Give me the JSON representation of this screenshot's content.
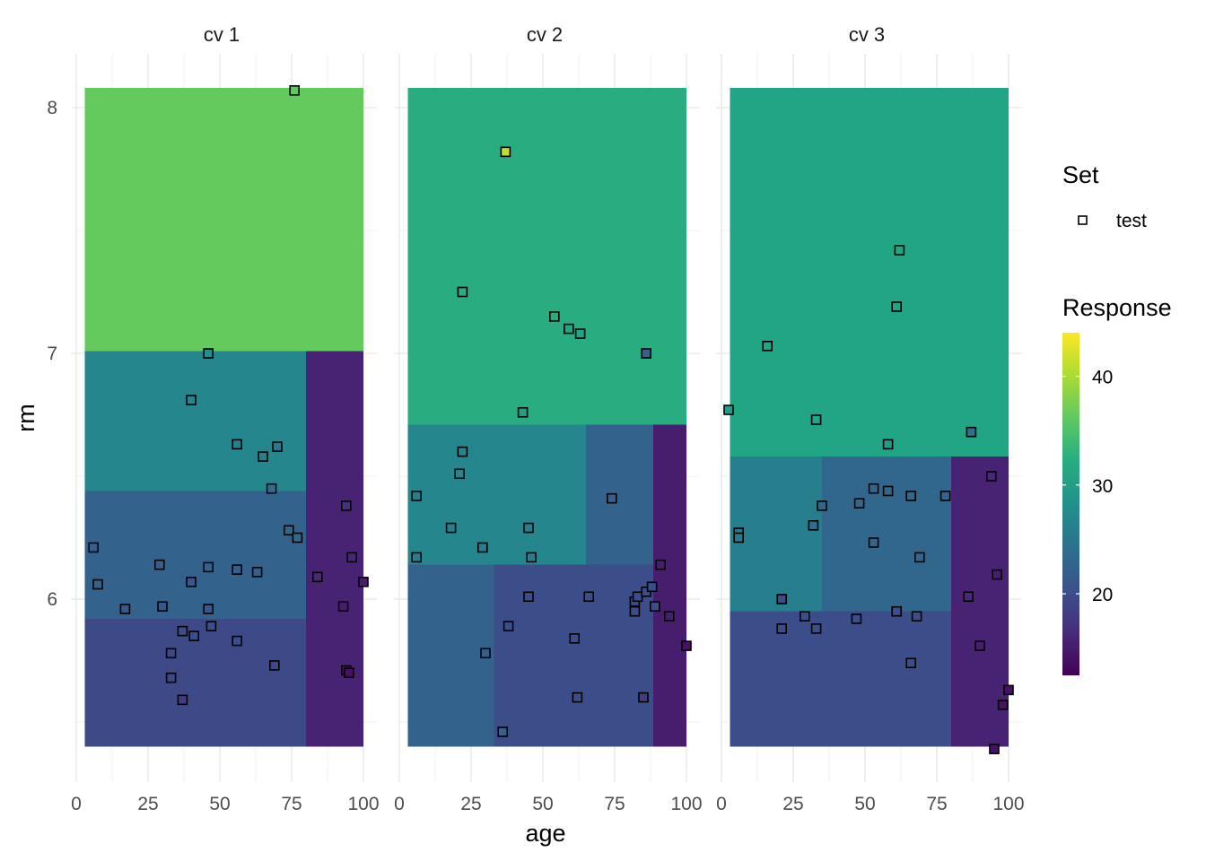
{
  "chart_data": {
    "type": "heatmap",
    "subtype": "faceted partition plot with test points",
    "x_label": "age",
    "y_label": "rm",
    "xlim": [
      0,
      100
    ],
    "ylim": [
      5.35,
      8.25
    ],
    "x_ticks": [
      "0",
      "25",
      "50",
      "75",
      "100"
    ],
    "y_ticks": [
      "6",
      "7",
      "8"
    ],
    "x_tick_values": [
      0,
      25,
      50,
      75,
      100
    ],
    "y_tick_values": [
      6,
      7,
      8
    ],
    "grid": true,
    "legend_position": "right",
    "legend": {
      "set_title": "Set",
      "set_entries": [
        "test"
      ],
      "response_title": "Response",
      "response_ticks": [
        "20",
        "30",
        "40"
      ],
      "response_tick_values": [
        20,
        30,
        40
      ],
      "response_range": [
        12.5,
        44
      ]
    },
    "facets": [
      {
        "label": "cv 1",
        "regions": [
          {
            "x": [
              2.9,
              100
            ],
            "y": [
              7.01,
              8.08
            ],
            "response": 36.5
          },
          {
            "x": [
              2.9,
              80
            ],
            "y": [
              6.44,
              7.01
            ],
            "response": 27
          },
          {
            "x": [
              2.9,
              80
            ],
            "y": [
              5.92,
              6.44
            ],
            "response": 22.5
          },
          {
            "x": [
              2.9,
              80
            ],
            "y": [
              5.4,
              5.92
            ],
            "response": 19.5
          },
          {
            "x": [
              80,
              100
            ],
            "y": [
              5.4,
              7.01
            ],
            "response": 15.5
          }
        ],
        "points": [
          {
            "x": 76,
            "y": 8.07,
            "r": 36
          },
          {
            "x": 46,
            "y": 7.0,
            "r": 28
          },
          {
            "x": 40,
            "y": 6.81,
            "r": 27
          },
          {
            "x": 56,
            "y": 6.63,
            "r": 26
          },
          {
            "x": 65,
            "y": 6.58,
            "r": 26
          },
          {
            "x": 70,
            "y": 6.62,
            "r": 25
          },
          {
            "x": 68,
            "y": 6.45,
            "r": 24
          },
          {
            "x": 74,
            "y": 6.28,
            "r": 23
          },
          {
            "x": 77,
            "y": 6.25,
            "r": 23
          },
          {
            "x": 6,
            "y": 6.21,
            "r": 22
          },
          {
            "x": 7.5,
            "y": 6.06,
            "r": 22
          },
          {
            "x": 17,
            "y": 5.96,
            "r": 21
          },
          {
            "x": 29,
            "y": 6.14,
            "r": 22
          },
          {
            "x": 30,
            "y": 5.97,
            "r": 21
          },
          {
            "x": 40,
            "y": 6.07,
            "r": 21
          },
          {
            "x": 46,
            "y": 6.13,
            "r": 22
          },
          {
            "x": 46,
            "y": 5.96,
            "r": 21
          },
          {
            "x": 56,
            "y": 6.12,
            "r": 22
          },
          {
            "x": 63,
            "y": 6.11,
            "r": 22
          },
          {
            "x": 37,
            "y": 5.87,
            "r": 20
          },
          {
            "x": 47,
            "y": 5.89,
            "r": 20
          },
          {
            "x": 41,
            "y": 5.85,
            "r": 20
          },
          {
            "x": 33,
            "y": 5.78,
            "r": 19
          },
          {
            "x": 56,
            "y": 5.83,
            "r": 20
          },
          {
            "x": 33,
            "y": 5.68,
            "r": 19
          },
          {
            "x": 69,
            "y": 5.73,
            "r": 19
          },
          {
            "x": 37,
            "y": 5.59,
            "r": 18
          },
          {
            "x": 94,
            "y": 6.38,
            "r": 17
          },
          {
            "x": 96,
            "y": 6.17,
            "r": 16
          },
          {
            "x": 84,
            "y": 6.09,
            "r": 16
          },
          {
            "x": 100,
            "y": 6.07,
            "r": 15
          },
          {
            "x": 93,
            "y": 5.97,
            "r": 15
          },
          {
            "x": 94,
            "y": 5.71,
            "r": 14
          },
          {
            "x": 95,
            "y": 5.7,
            "r": 14
          }
        ]
      },
      {
        "label": "cv 2",
        "regions": [
          {
            "x": 2.9,
            "x2": 100,
            "y": [
              6.71,
              8.08
            ],
            "response": 32,
            "xr": [
              2.9,
              100
            ]
          },
          {
            "xr": [
              2.9,
              65
            ],
            "y": [
              6.14,
              6.71
            ],
            "response": 27
          },
          {
            "xr": [
              65,
              88.5
            ],
            "y": [
              6.14,
              6.71
            ],
            "response": 22.5
          },
          {
            "xr": [
              2.9,
              33
            ],
            "y": [
              5.4,
              6.14
            ],
            "response": 22.5
          },
          {
            "xr": [
              33,
              88.5
            ],
            "y": [
              5.4,
              6.14
            ],
            "response": 20
          },
          {
            "xr": [
              88.5,
              100
            ],
            "y": [
              5.4,
              6.71
            ],
            "response": 15
          }
        ],
        "points": [
          {
            "x": 37,
            "y": 7.82,
            "r": 41
          },
          {
            "x": 22,
            "y": 7.25,
            "r": 32
          },
          {
            "x": 54,
            "y": 7.15,
            "r": 32
          },
          {
            "x": 59,
            "y": 7.1,
            "r": 31
          },
          {
            "x": 63,
            "y": 7.08,
            "r": 31
          },
          {
            "x": 86,
            "y": 7.0,
            "r": 22
          },
          {
            "x": 43,
            "y": 6.76,
            "r": 30
          },
          {
            "x": 22,
            "y": 6.6,
            "r": 27
          },
          {
            "x": 21,
            "y": 6.51,
            "r": 27
          },
          {
            "x": 6,
            "y": 6.42,
            "r": 26
          },
          {
            "x": 18,
            "y": 6.29,
            "r": 26
          },
          {
            "x": 45,
            "y": 6.29,
            "r": 26
          },
          {
            "x": 29,
            "y": 6.21,
            "r": 26
          },
          {
            "x": 6,
            "y": 6.17,
            "r": 26
          },
          {
            "x": 46,
            "y": 6.17,
            "r": 26
          },
          {
            "x": 74,
            "y": 6.41,
            "r": 22
          },
          {
            "x": 45,
            "y": 6.01,
            "r": 20
          },
          {
            "x": 66,
            "y": 6.01,
            "r": 20
          },
          {
            "x": 38,
            "y": 5.89,
            "r": 20
          },
          {
            "x": 61,
            "y": 5.84,
            "r": 20
          },
          {
            "x": 30,
            "y": 5.78,
            "r": 22
          },
          {
            "x": 62,
            "y": 5.6,
            "r": 20
          },
          {
            "x": 36,
            "y": 5.46,
            "r": 22
          },
          {
            "x": 82,
            "y": 5.99,
            "r": 20
          },
          {
            "x": 83,
            "y": 6.01,
            "r": 20
          },
          {
            "x": 86,
            "y": 6.03,
            "r": 20
          },
          {
            "x": 88,
            "y": 6.05,
            "r": 20
          },
          {
            "x": 82,
            "y": 5.95,
            "r": 20
          },
          {
            "x": 89,
            "y": 5.97,
            "r": 20
          },
          {
            "x": 85,
            "y": 5.6,
            "r": 18
          },
          {
            "x": 91,
            "y": 6.14,
            "r": 15
          },
          {
            "x": 94,
            "y": 5.93,
            "r": 15
          },
          {
            "x": 100,
            "y": 5.81,
            "r": 14
          }
        ]
      },
      {
        "label": "cv 3",
        "regions": [
          {
            "xr": [
              2.9,
              100
            ],
            "y": [
              6.58,
              8.08
            ],
            "response": 31
          },
          {
            "xr": [
              2.9,
              35
            ],
            "y": [
              5.95,
              6.58
            ],
            "response": 26
          },
          {
            "xr": [
              35,
              80
            ],
            "y": [
              5.95,
              6.58
            ],
            "response": 23
          },
          {
            "xr": [
              2.9,
              80
            ],
            "y": [
              5.4,
              5.95
            ],
            "response": 20
          },
          {
            "xr": [
              80,
              100
            ],
            "y": [
              5.4,
              6.58
            ],
            "response": 15.5
          }
        ],
        "points": [
          {
            "x": 62,
            "y": 7.42,
            "r": 31
          },
          {
            "x": 61,
            "y": 7.19,
            "r": 31
          },
          {
            "x": 16,
            "y": 7.03,
            "r": 31
          },
          {
            "x": 2.5,
            "y": 6.77,
            "r": 30
          },
          {
            "x": 33,
            "y": 6.73,
            "r": 31
          },
          {
            "x": 58,
            "y": 6.63,
            "r": 30
          },
          {
            "x": 87,
            "y": 6.68,
            "r": 24
          },
          {
            "x": 94,
            "y": 6.5,
            "r": 16
          },
          {
            "x": 53,
            "y": 6.45,
            "r": 23
          },
          {
            "x": 58,
            "y": 6.44,
            "r": 23
          },
          {
            "x": 66,
            "y": 6.42,
            "r": 23
          },
          {
            "x": 78,
            "y": 6.42,
            "r": 23
          },
          {
            "x": 48,
            "y": 6.39,
            "r": 23
          },
          {
            "x": 35,
            "y": 6.38,
            "r": 23
          },
          {
            "x": 32,
            "y": 6.3,
            "r": 24
          },
          {
            "x": 6,
            "y": 6.27,
            "r": 25
          },
          {
            "x": 6,
            "y": 6.25,
            "r": 25
          },
          {
            "x": 53,
            "y": 6.23,
            "r": 23
          },
          {
            "x": 69,
            "y": 6.17,
            "r": 23
          },
          {
            "x": 96,
            "y": 6.1,
            "r": 15
          },
          {
            "x": 86,
            "y": 6.01,
            "r": 16
          },
          {
            "x": 21,
            "y": 6.0,
            "r": 20
          },
          {
            "x": 29,
            "y": 5.93,
            "r": 20
          },
          {
            "x": 47,
            "y": 5.92,
            "r": 20
          },
          {
            "x": 61,
            "y": 5.95,
            "r": 20
          },
          {
            "x": 68,
            "y": 5.93,
            "r": 20
          },
          {
            "x": 21,
            "y": 5.88,
            "r": 20
          },
          {
            "x": 33,
            "y": 5.88,
            "r": 20
          },
          {
            "x": 90,
            "y": 5.81,
            "r": 15
          },
          {
            "x": 66,
            "y": 5.74,
            "r": 20
          },
          {
            "x": 100,
            "y": 5.63,
            "r": 14
          },
          {
            "x": 98,
            "y": 5.57,
            "r": 14
          },
          {
            "x": 95,
            "y": 5.39,
            "r": 14
          }
        ]
      }
    ]
  }
}
